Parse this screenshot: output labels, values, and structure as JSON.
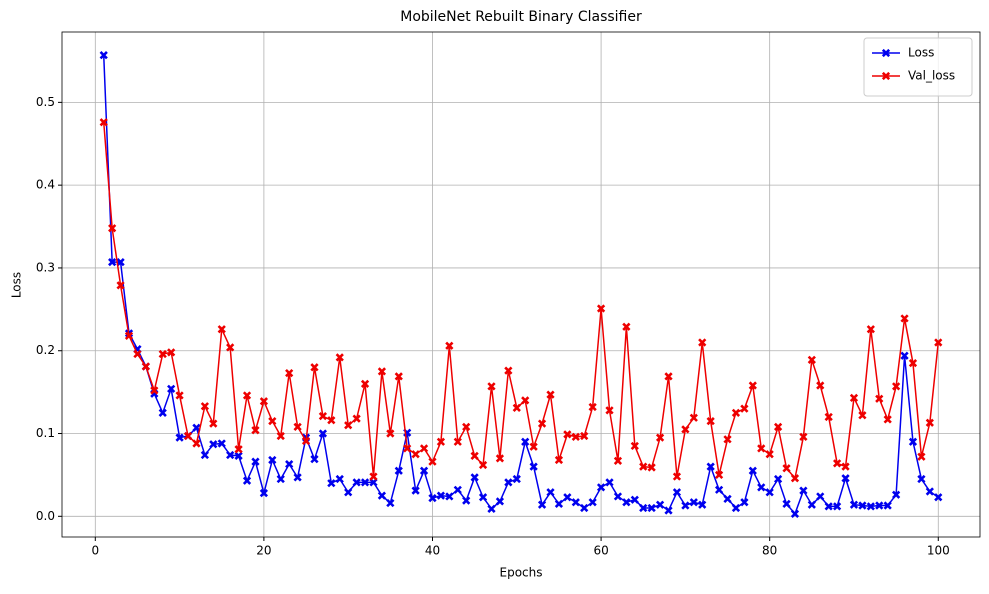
{
  "chart_data": {
    "type": "line",
    "title": "MobileNet Rebuilt Binary Classifier",
    "x_label": "Epochs",
    "y_label": "Loss",
    "x": [
      1,
      2,
      3,
      4,
      5,
      6,
      7,
      8,
      9,
      10,
      11,
      12,
      13,
      14,
      15,
      16,
      17,
      18,
      19,
      20,
      21,
      22,
      23,
      24,
      25,
      26,
      27,
      28,
      29,
      30,
      31,
      32,
      33,
      34,
      35,
      36,
      37,
      38,
      39,
      40,
      41,
      42,
      43,
      44,
      45,
      46,
      47,
      48,
      49,
      50,
      51,
      52,
      53,
      54,
      55,
      56,
      57,
      58,
      59,
      60,
      61,
      62,
      63,
      64,
      65,
      66,
      67,
      68,
      69,
      70,
      71,
      72,
      73,
      74,
      75,
      76,
      77,
      78,
      79,
      80,
      81,
      82,
      83,
      84,
      85,
      86,
      87,
      88,
      89,
      90,
      91,
      92,
      93,
      94,
      95,
      96,
      97,
      98,
      99,
      100
    ],
    "series": [
      {
        "name": "Loss",
        "color": "#0000ee",
        "values": [
          0.557,
          0.307,
          0.307,
          0.221,
          0.202,
          0.181,
          0.148,
          0.125,
          0.154,
          0.095,
          0.097,
          0.107,
          0.074,
          0.087,
          0.088,
          0.074,
          0.073,
          0.043,
          0.066,
          0.028,
          0.068,
          0.045,
          0.063,
          0.047,
          0.095,
          0.069,
          0.1,
          0.04,
          0.045,
          0.029,
          0.041,
          0.041,
          0.041,
          0.025,
          0.016,
          0.055,
          0.101,
          0.031,
          0.055,
          0.022,
          0.025,
          0.024,
          0.032,
          0.019,
          0.047,
          0.023,
          0.009,
          0.018,
          0.041,
          0.045,
          0.09,
          0.06,
          0.014,
          0.029,
          0.015,
          0.023,
          0.017,
          0.01,
          0.017,
          0.035,
          0.041,
          0.024,
          0.017,
          0.02,
          0.01,
          0.01,
          0.014,
          0.007,
          0.029,
          0.013,
          0.017,
          0.014,
          0.06,
          0.032,
          0.021,
          0.01,
          0.017,
          0.055,
          0.035,
          0.029,
          0.045,
          0.015,
          0.003,
          0.031,
          0.014,
          0.024,
          0.012,
          0.012,
          0.046,
          0.014,
          0.013,
          0.012,
          0.013,
          0.013,
          0.026,
          0.194,
          0.09,
          0.045,
          0.03,
          0.023
        ]
      },
      {
        "name": "Val_loss",
        "color": "#ee0000",
        "values": [
          0.476,
          0.348,
          0.279,
          0.218,
          0.196,
          0.181,
          0.152,
          0.196,
          0.198,
          0.146,
          0.097,
          0.088,
          0.133,
          0.112,
          0.226,
          0.204,
          0.081,
          0.146,
          0.104,
          0.139,
          0.115,
          0.097,
          0.173,
          0.108,
          0.091,
          0.18,
          0.121,
          0.116,
          0.192,
          0.11,
          0.118,
          0.16,
          0.048,
          0.175,
          0.1,
          0.169,
          0.082,
          0.075,
          0.082,
          0.066,
          0.09,
          0.206,
          0.09,
          0.108,
          0.073,
          0.062,
          0.157,
          0.07,
          0.176,
          0.131,
          0.14,
          0.084,
          0.112,
          0.147,
          0.068,
          0.099,
          0.096,
          0.097,
          0.132,
          0.251,
          0.128,
          0.067,
          0.229,
          0.085,
          0.06,
          0.059,
          0.095,
          0.169,
          0.048,
          0.105,
          0.119,
          0.21,
          0.115,
          0.05,
          0.093,
          0.125,
          0.13,
          0.158,
          0.082,
          0.075,
          0.108,
          0.058,
          0.046,
          0.096,
          0.189,
          0.158,
          0.12,
          0.064,
          0.06,
          0.143,
          0.122,
          0.226,
          0.142,
          0.117,
          0.157,
          0.239,
          0.185,
          0.072,
          0.113,
          0.21
        ]
      }
    ],
    "xlim": [
      -3.95,
      104.95
    ],
    "xticks": [
      0,
      20,
      40,
      60,
      80,
      100
    ],
    "ylim": [
      -0.025,
      0.585
    ],
    "yticks": [
      {
        "value": 0,
        "label": "0.0"
      },
      0.1,
      0.2,
      0.3,
      0.4,
      0.5
    ],
    "grid": true,
    "legend": "upper right"
  }
}
